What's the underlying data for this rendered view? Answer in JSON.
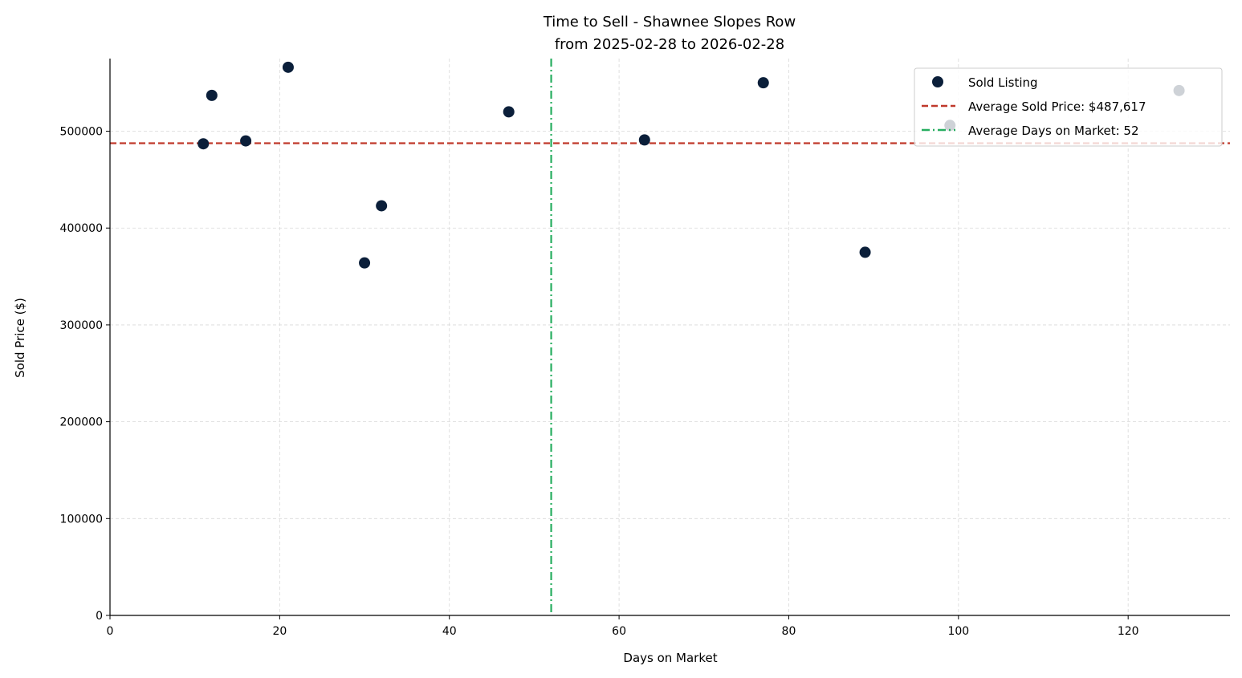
{
  "chart_data": {
    "type": "scatter",
    "title": "Time to Sell - Shawnee Slopes Row",
    "subtitle": "from 2025-02-28 to 2026-02-28",
    "xlabel": "Days on Market",
    "ylabel": "Sold Price ($)",
    "xlim": [
      0,
      132
    ],
    "ylim": [
      0,
      575000
    ],
    "xticks": [
      0,
      20,
      40,
      60,
      80,
      100,
      120
    ],
    "yticks": [
      0,
      100000,
      200000,
      300000,
      400000,
      500000
    ],
    "grid": true,
    "legend_position": "top-right",
    "series": [
      {
        "name": "Sold Listing",
        "color": "#0b1f3a",
        "points": [
          {
            "x": 11,
            "y": 487000
          },
          {
            "x": 12,
            "y": 537000
          },
          {
            "x": 16,
            "y": 490000
          },
          {
            "x": 21,
            "y": 566000
          },
          {
            "x": 30,
            "y": 364000
          },
          {
            "x": 32,
            "y": 423000
          },
          {
            "x": 47,
            "y": 520000
          },
          {
            "x": 63,
            "y": 491000
          },
          {
            "x": 77,
            "y": 550000
          },
          {
            "x": 89,
            "y": 375000
          },
          {
            "x": 99,
            "y": 506000
          },
          {
            "x": 126,
            "y": 542000
          }
        ]
      }
    ],
    "reference_lines": [
      {
        "name": "Average Sold Price: $487,617",
        "axis": "y",
        "value": 487617,
        "color": "#c0392b",
        "style": "dashed"
      },
      {
        "name": "Average Days on Market: 52",
        "axis": "x",
        "value": 52,
        "color": "#27ae60",
        "style": "dashdot"
      }
    ]
  }
}
